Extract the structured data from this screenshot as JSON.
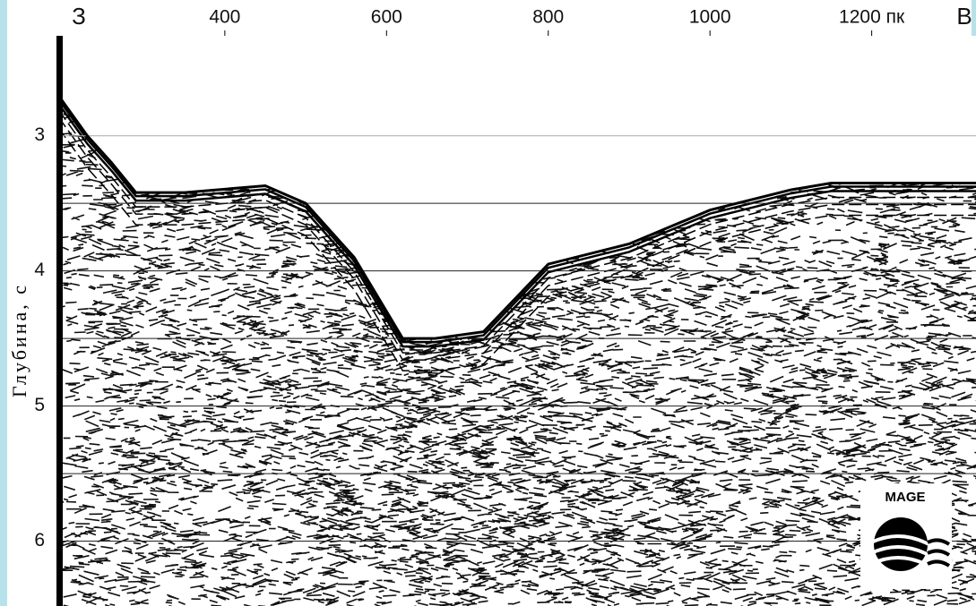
{
  "chart_data": {
    "type": "seismic",
    "left_label": "З",
    "right_label": "В",
    "y_label": "Глубина, с",
    "logo_text": "MAGE",
    "xlim": [
      194,
      1329
    ],
    "xticks": [
      400,
      600,
      800,
      1000,
      {
        "value": 1200,
        "label": "1200 пк"
      }
    ],
    "ylim": [
      2.26,
      6.48
    ],
    "yticks": [
      3,
      4,
      5,
      6
    ],
    "minor_yticks": [
      3.5,
      4.5,
      5.5
    ],
    "y_inverted": true,
    "x": [
      194,
      230,
      260,
      290,
      350,
      450,
      500,
      560,
      600,
      620,
      660,
      720,
      760,
      800,
      900,
      1000,
      1100,
      1150,
      1329
    ],
    "values": [
      2.7,
      3.0,
      3.2,
      3.42,
      3.42,
      3.37,
      3.5,
      3.9,
      4.3,
      4.5,
      4.5,
      4.45,
      4.2,
      3.95,
      3.8,
      3.55,
      3.4,
      3.35,
      3.35
    ],
    "color": "#000000"
  }
}
